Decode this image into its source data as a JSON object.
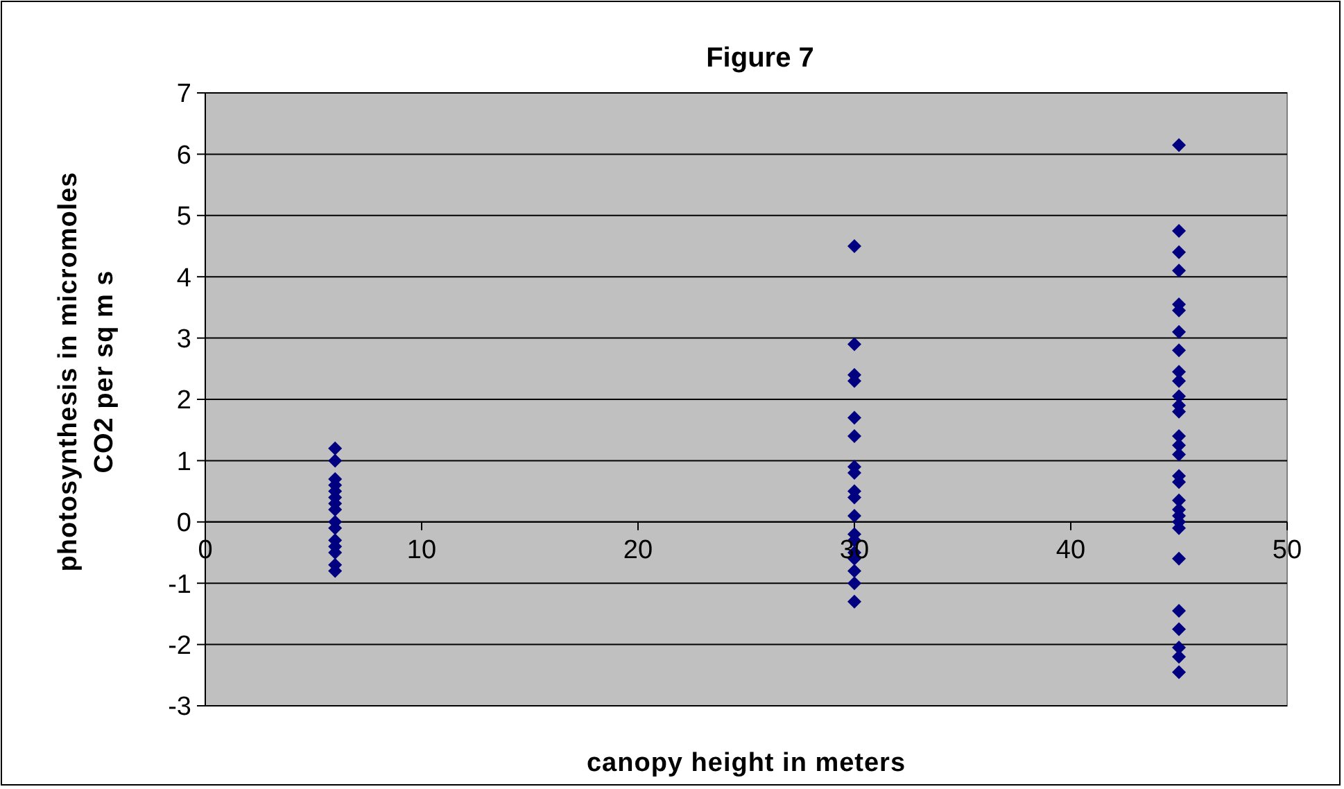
{
  "chart_data": {
    "type": "scatter",
    "title": "Figure 7",
    "xlabel": "canopy height in meters",
    "ylabel": "photosynthesis in micromoles CO2 per sq m s",
    "xlim": [
      0,
      50
    ],
    "xticks": [
      0,
      10,
      20,
      30,
      40,
      50
    ],
    "ylim": [
      -3,
      7
    ],
    "yticks": [
      -3,
      -2,
      -1,
      0,
      1,
      2,
      3,
      4,
      5,
      6,
      7
    ],
    "grid": "y",
    "marker": "diamond",
    "series": [
      {
        "color": "#000080",
        "x": [
          6,
          6,
          6,
          6,
          6,
          6,
          6,
          6,
          6,
          6,
          6,
          6,
          6,
          6,
          6,
          30,
          30,
          30,
          30,
          30,
          30,
          30,
          30,
          30,
          30,
          30,
          30,
          30,
          30,
          30,
          30,
          30,
          30,
          45,
          45,
          45,
          45,
          45,
          45,
          45,
          45,
          45,
          45,
          45,
          45,
          45,
          45,
          45,
          45,
          45,
          45,
          45,
          45,
          45,
          45,
          45,
          45,
          45,
          45,
          45,
          45,
          45
        ],
        "values": [
          1.2,
          1.0,
          0.7,
          0.6,
          0.5,
          0.4,
          0.3,
          0.2,
          0.0,
          -0.1,
          -0.3,
          -0.4,
          -0.5,
          -0.7,
          -0.8,
          4.5,
          2.9,
          2.4,
          2.3,
          1.7,
          1.4,
          0.9,
          0.8,
          0.5,
          0.4,
          0.1,
          -0.2,
          -0.3,
          -0.5,
          -0.6,
          -0.8,
          -1.0,
          -1.3,
          6.15,
          4.75,
          4.4,
          4.1,
          3.55,
          3.45,
          3.1,
          2.8,
          2.45,
          2.3,
          2.05,
          1.9,
          1.8,
          1.4,
          1.25,
          1.1,
          0.75,
          0.65,
          0.35,
          0.2,
          0.1,
          0.0,
          -0.1,
          -0.6,
          -1.45,
          -1.75,
          -2.05,
          -2.2,
          -2.45
        ]
      }
    ]
  }
}
